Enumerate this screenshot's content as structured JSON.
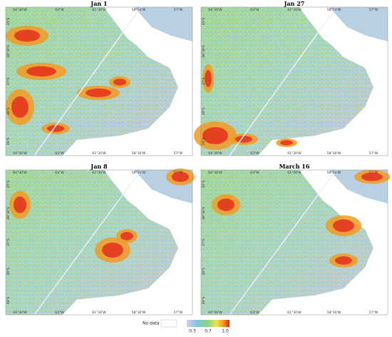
{
  "panels": [
    {
      "title": "Jan 1",
      "top_ticks": [
        "64°30'W",
        "63°W",
        "61°30'W",
        "58°30'W",
        "57°W"
      ],
      "left_ticks": [
        "35°S",
        "36°30'S",
        "37°S",
        "38°S",
        "39°S"
      ]
    },
    {
      "title": "Jan 27",
      "top_ticks": [
        "64°30'W",
        "63°W",
        "61°30'W",
        "58°30'W",
        "57°W"
      ],
      "left_ticks": [
        "35°S",
        "36°30'S",
        "37°S",
        "38°S",
        "39°S"
      ]
    },
    {
      "title": "Jan 8",
      "top_ticks": [
        "64°30'W",
        "63°W",
        "61°30'W",
        "58°30'W",
        "57°W"
      ],
      "left_ticks": [
        "35°S",
        "36°30'S",
        "37°S",
        "38°S",
        "39°S"
      ]
    },
    {
      "title": "March 16",
      "top_ticks": [
        "64°30'W",
        "63°W",
        "61°30'W",
        "58°30'W",
        "57°W"
      ],
      "left_ticks": [
        "35°S",
        "36°30'S",
        "37°S",
        "38°S",
        "39°S"
      ]
    }
  ],
  "legend": {
    "labels": [
      "No data",
      "0.3",
      "0.7",
      "1.0"
    ]
  }
}
